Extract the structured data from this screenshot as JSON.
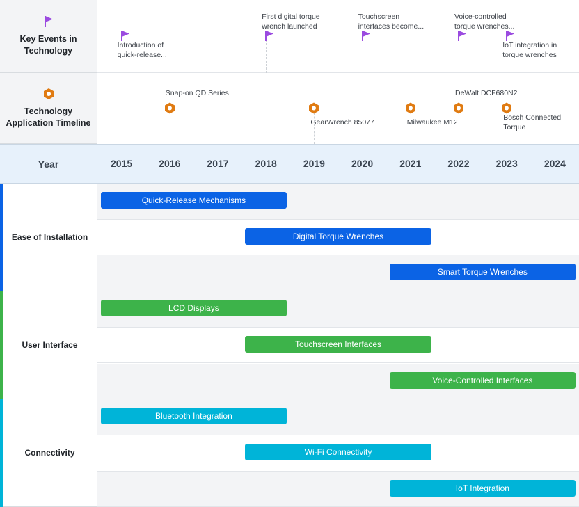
{
  "chart_data": {
    "type": "timeline-gantt",
    "x_axis": {
      "label": "Year",
      "ticks": [
        "2015",
        "2016",
        "2017",
        "2018",
        "2019",
        "2020",
        "2021",
        "2022",
        "2023",
        "2024"
      ],
      "range": [
        2014.5,
        2024.5
      ]
    },
    "events_lane": {
      "label": "Key Events in Technology",
      "icon": "flag-icon",
      "color": "#9b4be0",
      "items": [
        {
          "year": 2015,
          "text": [
            "Introduction of",
            "quick-release..."
          ],
          "label_pos": "below"
        },
        {
          "year": 2018,
          "text": [
            "First digital torque",
            "wrench launched"
          ],
          "label_pos": "above"
        },
        {
          "year": 2020,
          "text": [
            "Touchscreen",
            "interfaces become..."
          ],
          "label_pos": "above"
        },
        {
          "year": 2022,
          "text": [
            "Voice-controlled",
            "torque wrenches..."
          ],
          "label_pos": "above"
        },
        {
          "year": 2023,
          "text": [
            "IoT integration in",
            "torque wrenches"
          ],
          "label_pos": "below"
        }
      ]
    },
    "products_lane": {
      "label": "Technology Application Timeline",
      "icon": "hex-nut-icon",
      "color": "#e07b12",
      "items": [
        {
          "year": 2016,
          "text": [
            "Snap-on QD Series"
          ],
          "label_pos": "above"
        },
        {
          "year": 2019,
          "text": [
            "GearWrench 85077"
          ],
          "label_pos": "below"
        },
        {
          "year": 2021,
          "text": [
            "Milwaukee M12"
          ],
          "label_pos": "below"
        },
        {
          "year": 2022,
          "text": [
            "DeWalt DCF680N2"
          ],
          "label_pos": "above"
        },
        {
          "year": 2023,
          "text": [
            "Bosch Connected",
            "Torque"
          ],
          "label_pos": "below"
        }
      ]
    },
    "groups": [
      {
        "name": "Ease of Installation",
        "color": "#0b63e5",
        "tasks": [
          {
            "name": "Quick-Release Mechanisms",
            "start": 2015,
            "end": 2018
          },
          {
            "name": "Digital Torque Wrenches",
            "start": 2018,
            "end": 2021
          },
          {
            "name": "Smart Torque Wrenches",
            "start": 2021,
            "end": 2024
          }
        ]
      },
      {
        "name": "User Interface",
        "color": "#3db34a",
        "tasks": [
          {
            "name": "LCD Displays",
            "start": 2015,
            "end": 2018
          },
          {
            "name": "Touchscreen Interfaces",
            "start": 2018,
            "end": 2021
          },
          {
            "name": "Voice-Controlled Interfaces",
            "start": 2021,
            "end": 2024
          }
        ]
      },
      {
        "name": "Connectivity",
        "color": "#00b4d8",
        "tasks": [
          {
            "name": "Bluetooth Integration",
            "start": 2015,
            "end": 2018
          },
          {
            "name": "Wi-Fi Connectivity",
            "start": 2018,
            "end": 2021
          },
          {
            "name": "IoT Integration",
            "start": 2021,
            "end": 2024
          }
        ]
      }
    ]
  }
}
